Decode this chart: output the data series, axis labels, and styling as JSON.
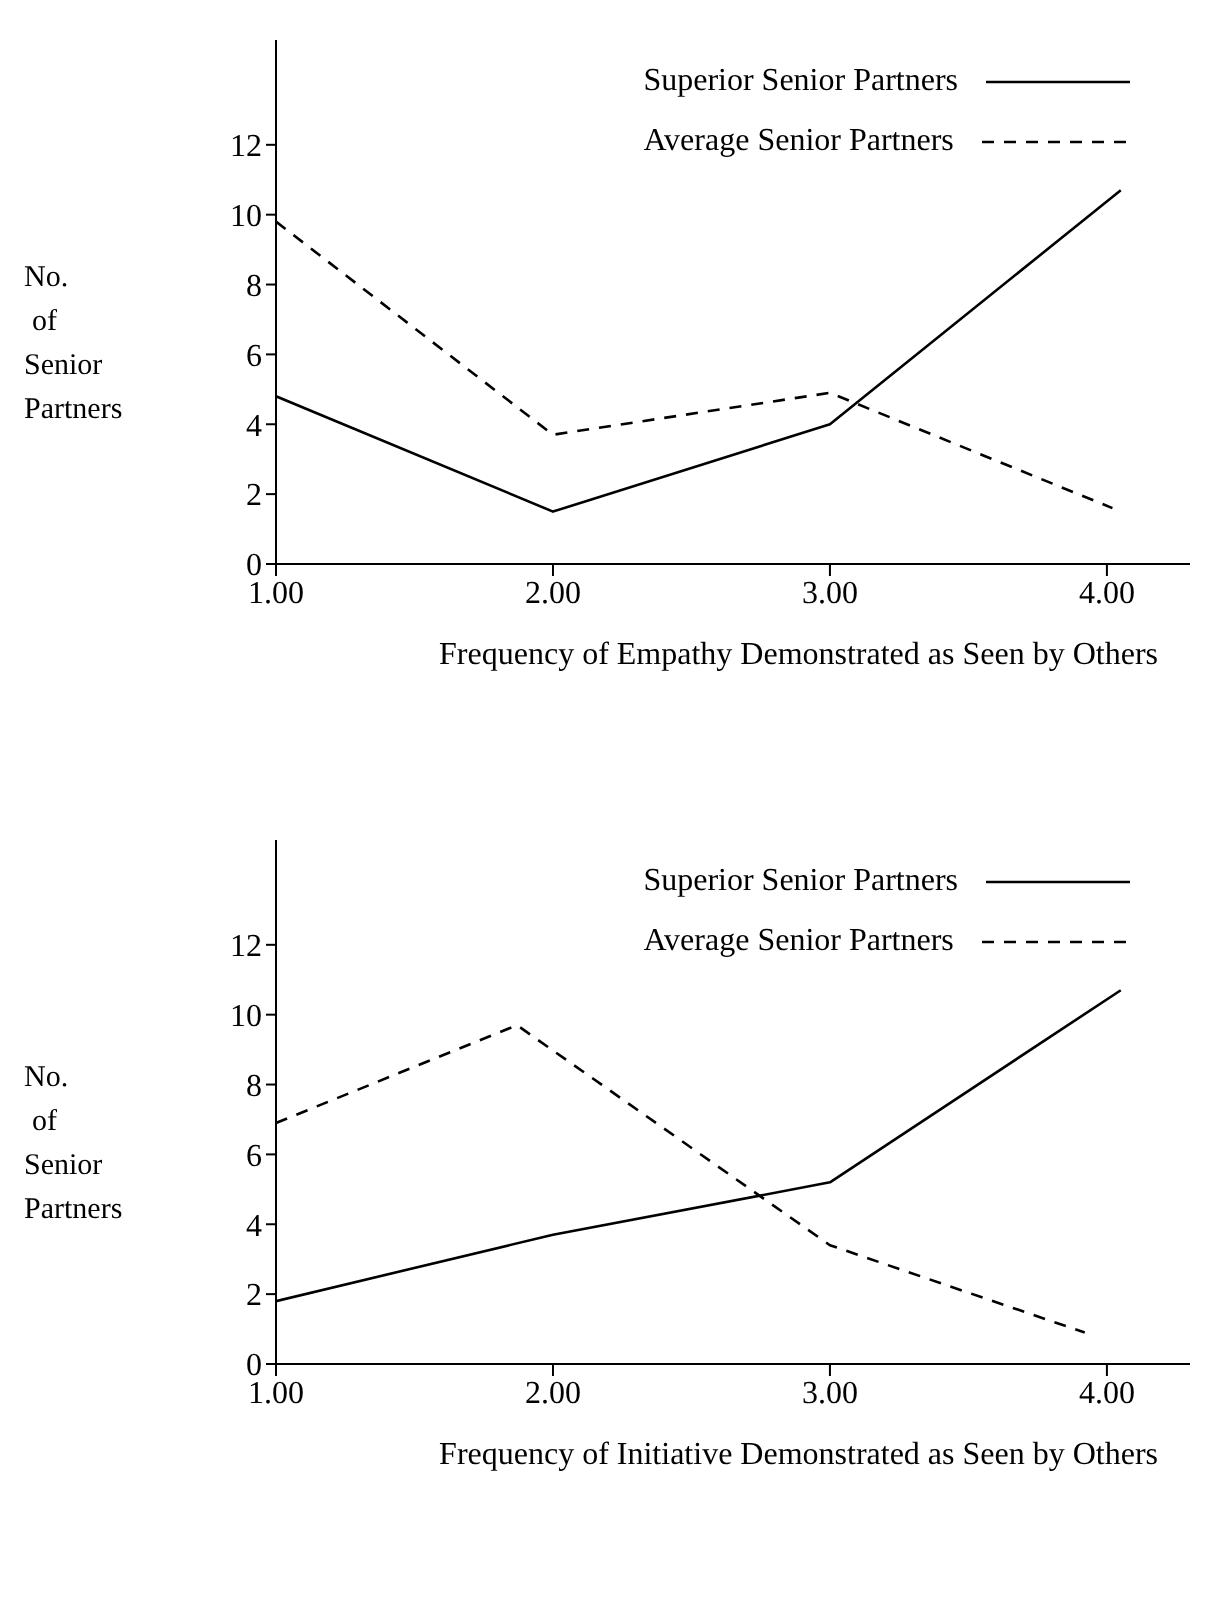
{
  "chart_data": [
    {
      "type": "line",
      "xlabel": "Frequency of Empathy Demonstrated as Seen by Others",
      "ylabel": "No. of Senior Partners",
      "xlim": [
        1,
        4.3
      ],
      "xticks": [
        {
          "value": 1,
          "label": "1.00"
        },
        {
          "value": 2,
          "label": "2.00"
        },
        {
          "value": 3,
          "label": "3.00"
        },
        {
          "value": 4,
          "label": "4.00"
        }
      ],
      "ylim": [
        0,
        15
      ],
      "yticks": [
        0,
        2,
        4,
        6,
        8,
        10,
        12
      ],
      "grid": false,
      "legend": "top right",
      "marker": "none",
      "series": [
        {
          "name": "Superior Senior Partners",
          "color": "#000000",
          "line_style": "solid",
          "x": [
            1,
            2,
            3,
            4.05
          ],
          "values": [
            4.8,
            1.5,
            4,
            10.7
          ]
        },
        {
          "name": "Average Senior Partners",
          "color": "#000000",
          "line_style": "dashed",
          "x": [
            1,
            2,
            3,
            4.02
          ],
          "values": [
            9.8,
            3.7,
            4.9,
            1.6
          ]
        }
      ]
    },
    {
      "type": "line",
      "xlabel": "Frequency of Initiative Demonstrated as Seen by Others",
      "ylabel": "No. of Senior Partners",
      "xlim": [
        1,
        4.3
      ],
      "xticks": [
        {
          "value": 1,
          "label": "1.00"
        },
        {
          "value": 2,
          "label": "2.00"
        },
        {
          "value": 3,
          "label": "3.00"
        },
        {
          "value": 4,
          "label": "4.00"
        }
      ],
      "ylim": [
        0,
        15
      ],
      "yticks": [
        0,
        2,
        4,
        6,
        8,
        10,
        12
      ],
      "grid": false,
      "legend": "top right",
      "marker": "none",
      "series": [
        {
          "name": "Superior Senior Partners",
          "color": "#000000",
          "line_style": "solid",
          "x": [
            1,
            2,
            3,
            4.05
          ],
          "values": [
            1.8,
            3.7,
            5.2,
            10.7
          ]
        },
        {
          "name": "Average Senior Partners",
          "color": "#000000",
          "line_style": "dashed",
          "x": [
            1,
            1.87,
            3,
            3.92
          ],
          "values": [
            6.9,
            9.7,
            3.4,
            0.9
          ]
        }
      ]
    }
  ]
}
